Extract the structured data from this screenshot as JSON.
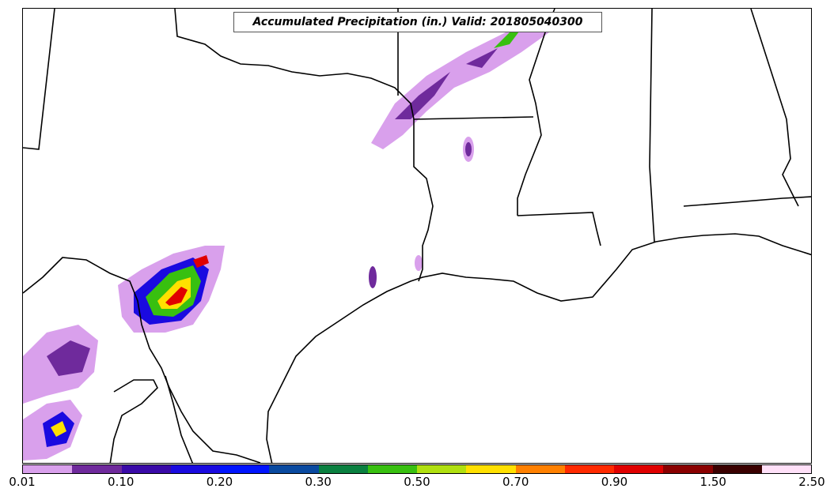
{
  "title": "Accumulated Precipitation (in.) Valid: 201805040300",
  "colorbar": {
    "colors": [
      "#d9a0ec",
      "#6f2a9c",
      "#3a0aa8",
      "#1a0ae0",
      "#0014ff",
      "#0a4aa0",
      "#0a8040",
      "#38c010",
      "#b0e010",
      "#ffe000",
      "#ff8000",
      "#ff2a00",
      "#e00000",
      "#8a0000",
      "#3a0000",
      "#ffe0f8"
    ],
    "ticks": [
      "0.01",
      "0.10",
      "0.20",
      "0.30",
      "0.50",
      "0.70",
      "0.90",
      "1.50",
      "2.50"
    ]
  },
  "map": {
    "region": "Texas / Louisiana / Gulf of Mexico",
    "basemap": "state borders and coastlines",
    "precip_colors": {
      "light": "#d9a0ec",
      "moderate": "#6f2a9c",
      "heavy": "#1a0ae0",
      "very_heavy": "#38c010",
      "intense": "#ffe000",
      "extreme": "#e00000"
    }
  }
}
